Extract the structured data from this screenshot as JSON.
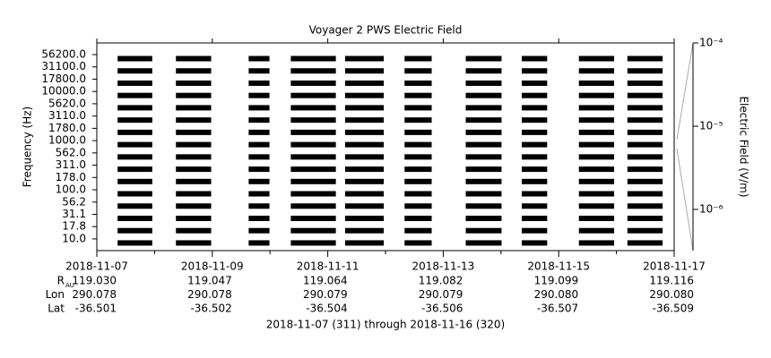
{
  "chart_data": {
    "type": "coverage",
    "title": "Voyager 2 PWS Electric Field",
    "ylabel": "Frequency (Hz)",
    "y2label": "Electric Field (V/m)",
    "categories": [
      "56200.0",
      "31100.0",
      "17800.0",
      "10000.0",
      "5620.0",
      "3110.0",
      "1780.0",
      "1000.0",
      "562.0",
      "311.0",
      "178.0",
      "100.0",
      "56.2",
      "31.1",
      "17.8",
      "10.0"
    ],
    "xlim": [
      311,
      321
    ],
    "xticks": [
      {
        "value": 311,
        "label": "2018-11-07"
      },
      {
        "value": 313,
        "label": "2018-11-09"
      },
      {
        "value": 315,
        "label": "2018-11-11"
      },
      {
        "value": 317,
        "label": "2018-11-13"
      },
      {
        "value": 319,
        "label": "2018-11-15"
      },
      {
        "value": 321,
        "label": "2018-11-17"
      }
    ],
    "xminorticks": [
      312,
      314,
      316,
      318,
      320
    ],
    "segments": [
      [
        311.36,
        311.96
      ],
      [
        312.37,
        312.98
      ],
      [
        313.63,
        313.99
      ],
      [
        314.36,
        315.14
      ],
      [
        315.3,
        315.97
      ],
      [
        316.33,
        316.8
      ],
      [
        317.39,
        318.01
      ],
      [
        318.36,
        318.8
      ],
      [
        319.35,
        319.96
      ],
      [
        320.19,
        320.8
      ]
    ],
    "color": "#000000",
    "y2lim": [
      3.2e-07,
      0.0001
    ],
    "y2log": true,
    "y2ticks": [
      {
        "value": 0.0001,
        "label": "10⁻⁴"
      },
      {
        "value": 1e-05,
        "label": "10⁻⁵"
      },
      {
        "value": 1e-06,
        "label": "10⁻⁶"
      }
    ],
    "ephemeris": [
      {
        "label": "R",
        "sub": "AU",
        "values": [
          "119.030",
          "119.047",
          "119.064",
          "119.082",
          "119.099",
          "119.116"
        ]
      },
      {
        "label": "Lon",
        "values": [
          "290.078",
          "290.078",
          "290.079",
          "290.079",
          "290.080",
          "290.080"
        ]
      },
      {
        "label": "Lat",
        "values": [
          "-36.501",
          "-36.502",
          "-36.504",
          "-36.506",
          "-36.507",
          "-36.509"
        ]
      }
    ],
    "footnote": "2018-11-07 (311) through 2018-11-16 (320)"
  }
}
